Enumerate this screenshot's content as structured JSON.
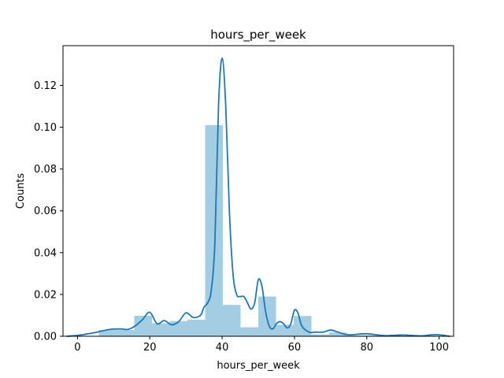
{
  "chart_data": {
    "type": "bar",
    "title": "hours_per_week",
    "xlabel": "hours_per_week",
    "ylabel": "Counts",
    "xlim": [
      -4,
      104
    ],
    "ylim": [
      0,
      0.139
    ],
    "xticks": [
      0,
      20,
      40,
      60,
      80,
      100
    ],
    "yticks": [
      0.0,
      0.02,
      0.04,
      0.06,
      0.08,
      0.1,
      0.12
    ],
    "ytick_labels": [
      "0.00",
      "0.02",
      "0.04",
      "0.06",
      "0.08",
      "0.10",
      "0.12"
    ],
    "grid": false,
    "colors": {
      "hist": "#9ecae1",
      "kde": "#1f77b4"
    },
    "histogram": {
      "bin_edges": [
        5.9,
        10.8,
        15.7,
        20.6,
        25.5,
        30.4,
        35.3,
        40.2,
        45.1,
        50.0,
        54.9,
        59.8,
        64.7,
        69.6,
        74.5,
        79.4,
        84.3,
        89.2,
        94.1,
        99.0
      ],
      "values": [
        0.003,
        0.003,
        0.0098,
        0.0062,
        0.0073,
        0.0079,
        0.101,
        0.015,
        0.0043,
        0.019,
        0.0055,
        0.0097,
        0.0009,
        0.0018,
        0.0003,
        0.0004,
        0.0002,
        0.0002,
        0.0004
      ]
    },
    "kde": {
      "x": [
        -3,
        0,
        3,
        6,
        9,
        12,
        14,
        16,
        18,
        20,
        22,
        24,
        26,
        28,
        30,
        32,
        34,
        35,
        36,
        37,
        38,
        39,
        40,
        41,
        42,
        43,
        44,
        45,
        46,
        47,
        48,
        49,
        50,
        51,
        52,
        53,
        54,
        55,
        56,
        57,
        58,
        59,
        60,
        61,
        62,
        64,
        66,
        68,
        70,
        72,
        75,
        80,
        85,
        90,
        95,
        99,
        103
      ],
      "y": [
        0.0,
        0.0004,
        0.0012,
        0.0022,
        0.0033,
        0.0035,
        0.0033,
        0.005,
        0.008,
        0.0115,
        0.006,
        0.0075,
        0.0055,
        0.007,
        0.0112,
        0.009,
        0.01,
        0.014,
        0.016,
        0.022,
        0.045,
        0.11,
        0.133,
        0.11,
        0.06,
        0.03,
        0.02,
        0.019,
        0.019,
        0.016,
        0.013,
        0.016,
        0.027,
        0.024,
        0.012,
        0.005,
        0.0035,
        0.006,
        0.007,
        0.006,
        0.004,
        0.006,
        0.0125,
        0.011,
        0.005,
        0.002,
        0.002,
        0.002,
        0.003,
        0.002,
        0.0007,
        0.0012,
        0.0003,
        0.0006,
        0.0002,
        0.0008,
        0.0
      ]
    }
  }
}
